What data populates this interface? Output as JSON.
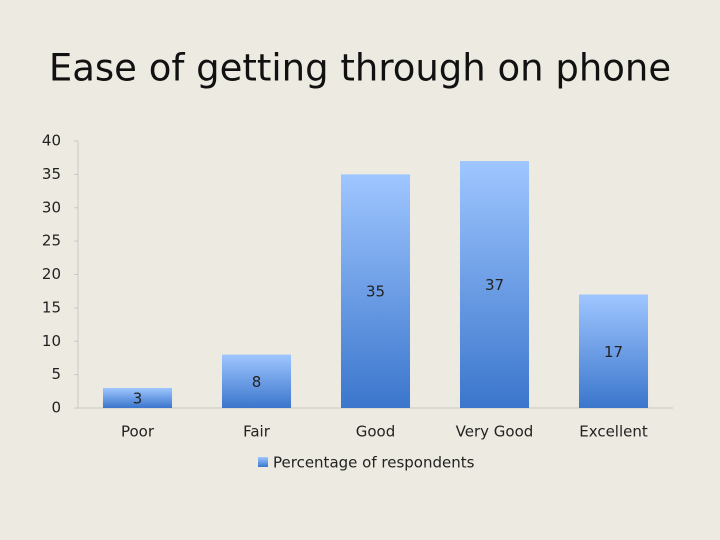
{
  "chart_data": {
    "type": "bar",
    "title": "Ease of getting through on phone",
    "categories": [
      "Poor",
      "Fair",
      "Good",
      "Very Good",
      "Excellent"
    ],
    "series": [
      {
        "name": "Percentage of respondents",
        "color": "#3b76cc",
        "values": [
          3,
          8,
          35,
          37,
          17
        ]
      }
    ],
    "ylim": [
      0,
      40
    ],
    "yticks": [
      0,
      5,
      10,
      15,
      20,
      25,
      30,
      35,
      40
    ],
    "grid": false,
    "legend": "bottom"
  }
}
